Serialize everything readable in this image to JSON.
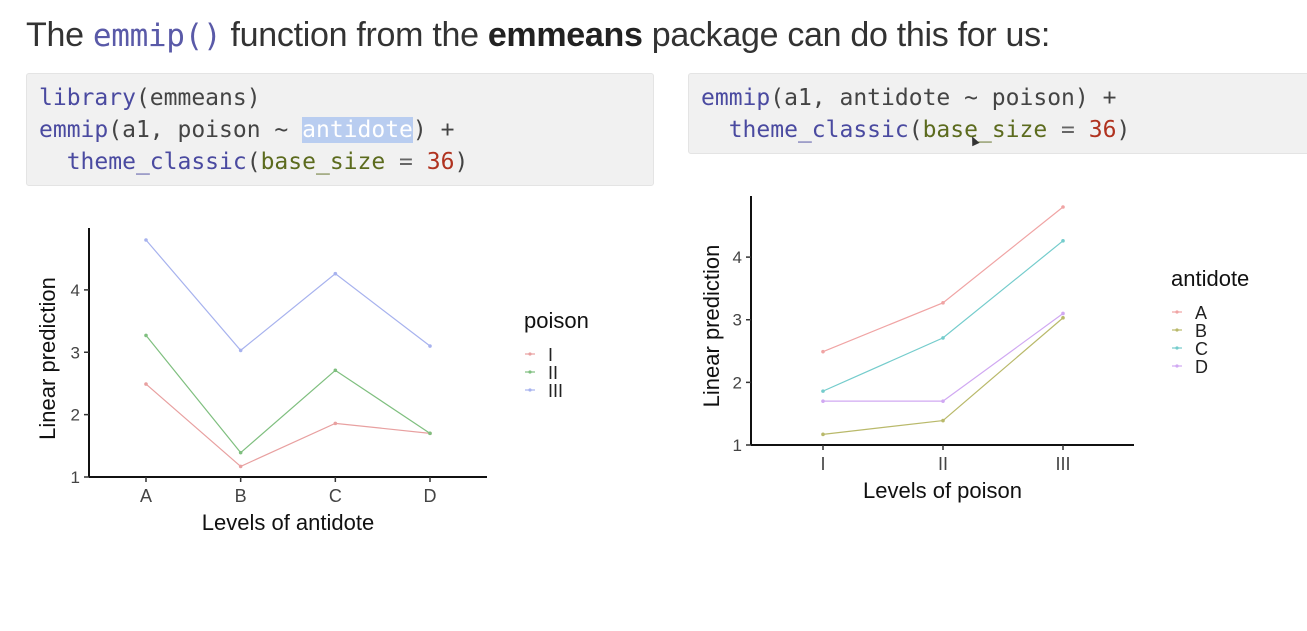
{
  "heading": {
    "prefix": "The ",
    "func": "emmip()",
    "middle": " function from the ",
    "pkg": "emmeans",
    "suffix": " package can do this for us:"
  },
  "code_left": {
    "line1_fn": "library",
    "line1_rest": "(emmeans)",
    "line2_fn": "emmip",
    "line2_a": "(a1, poison ~ ",
    "line2_sel": "antidote",
    "line2_b": ") +",
    "line3_fn": "theme_classic",
    "line3_arg": "base_size",
    "line3_eq": " = ",
    "line3_num": "36",
    "line3_close": ")"
  },
  "code_right": {
    "line1_fn": "emmip",
    "line1_rest": "(a1, antidote ~ poison) +",
    "line2_fn": "theme_classic",
    "line2_arg": "base_size",
    "line2_eq": " = ",
    "line2_num": "36",
    "line2_close": ")"
  },
  "chart_data": [
    {
      "type": "line",
      "categories": [
        "A",
        "B",
        "C",
        "D"
      ],
      "xlabel": "Levels of antidote",
      "ylabel": "Linear prediction",
      "yticks": [
        1,
        2,
        3,
        4
      ],
      "ylim": [
        1,
        4.8
      ],
      "legend_title": "poison",
      "legend_position": "right",
      "series": [
        {
          "name": "I",
          "color": "#e8a0a0",
          "values": [
            2.49,
            1.17,
            1.86,
            1.7
          ]
        },
        {
          "name": "II",
          "color": "#7fbf7f",
          "values": [
            3.27,
            1.39,
            2.71,
            1.7
          ]
        },
        {
          "name": "III",
          "color": "#a7b2ee",
          "values": [
            4.8,
            3.03,
            4.26,
            3.1
          ]
        }
      ]
    },
    {
      "type": "line",
      "categories": [
        "I",
        "II",
        "III"
      ],
      "xlabel": "Levels of poison",
      "ylabel": "Linear prediction",
      "yticks": [
        1,
        2,
        3,
        4
      ],
      "ylim": [
        1,
        4.8
      ],
      "legend_title": "antidote",
      "legend_position": "right",
      "series": [
        {
          "name": "A",
          "color": "#f0a4a4",
          "values": [
            2.49,
            3.27,
            4.8
          ]
        },
        {
          "name": "B",
          "color": "#b9b96a",
          "values": [
            1.17,
            1.39,
            3.03
          ]
        },
        {
          "name": "C",
          "color": "#74cccc",
          "values": [
            1.86,
            2.71,
            4.26
          ]
        },
        {
          "name": "D",
          "color": "#d0a8f2",
          "values": [
            1.7,
            1.7,
            3.1
          ]
        }
      ]
    }
  ]
}
